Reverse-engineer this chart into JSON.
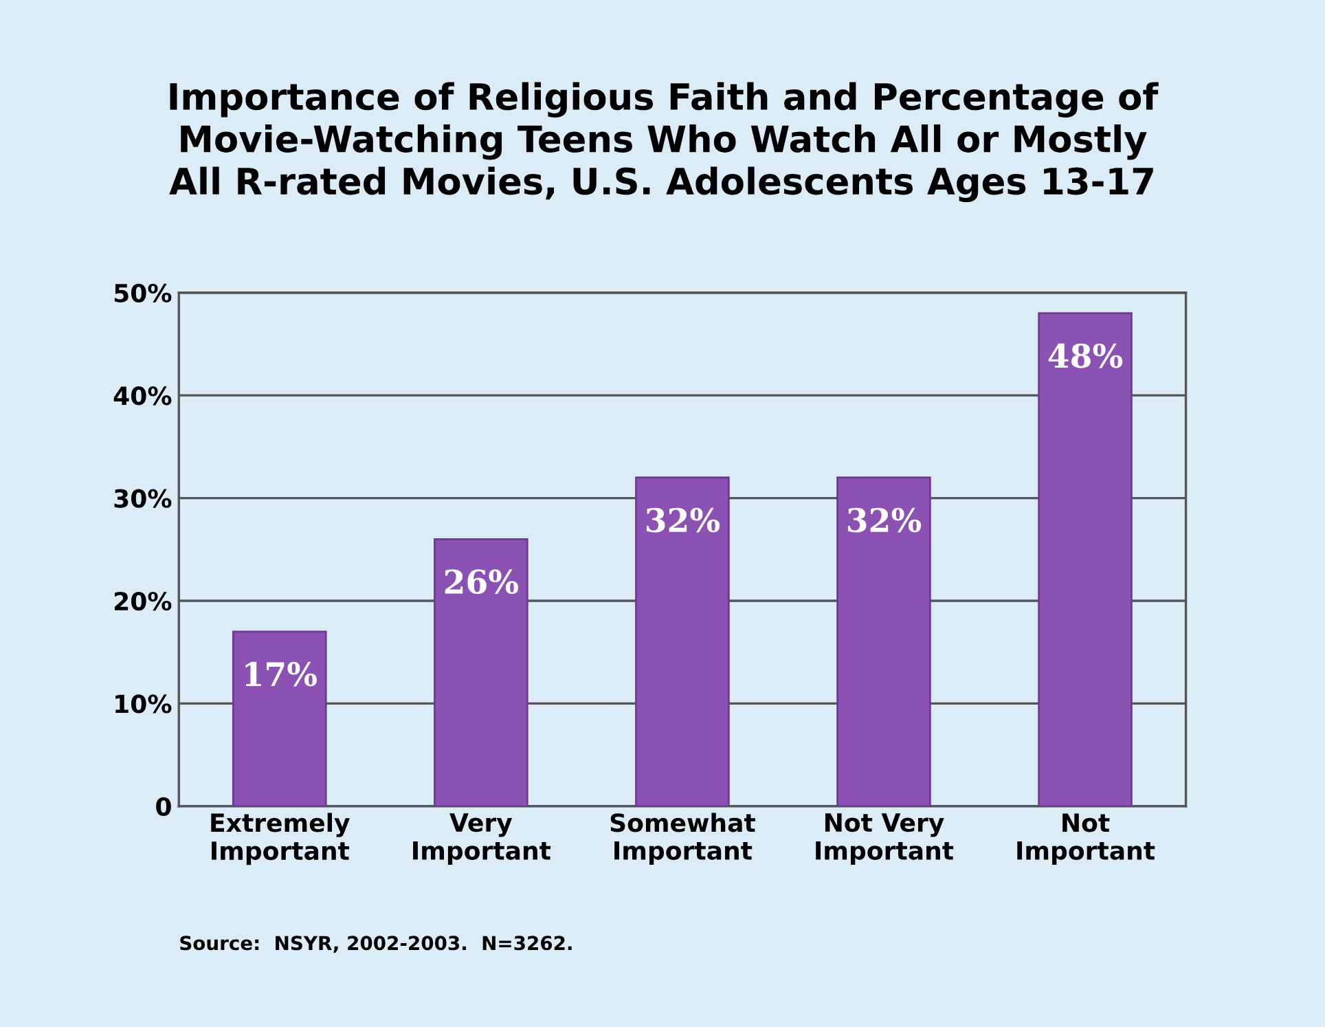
{
  "chart_data": {
    "type": "bar",
    "title": "Importance of Religious Faith and Percentage of\nMovie-Watching Teens Who Watch All or Mostly\nAll R-rated Movies, U.S. Adolescents Ages 13-17",
    "categories": [
      "Extremely\nImportant",
      "Very\nImportant",
      "Somewhat\nImportant",
      "Not Very\nImportant",
      "Not\nImportant"
    ],
    "values": [
      17,
      26,
      32,
      32,
      48
    ],
    "value_labels": [
      "17%",
      "26%",
      "32%",
      "32%",
      "48%"
    ],
    "color": "#8b52b3",
    "ylim": [
      0,
      50
    ],
    "yticks": [
      0,
      {
        "value": 10,
        "label": "10%"
      },
      {
        "value": 20,
        "label": "20%"
      },
      {
        "value": 30,
        "label": "30%"
      },
      {
        "value": 40,
        "label": "40%"
      },
      {
        "value": 50,
        "label": "50%"
      }
    ],
    "grid": "y",
    "annotations": [
      "Source:  NSYR, 2002-2003.  N=3262."
    ]
  }
}
